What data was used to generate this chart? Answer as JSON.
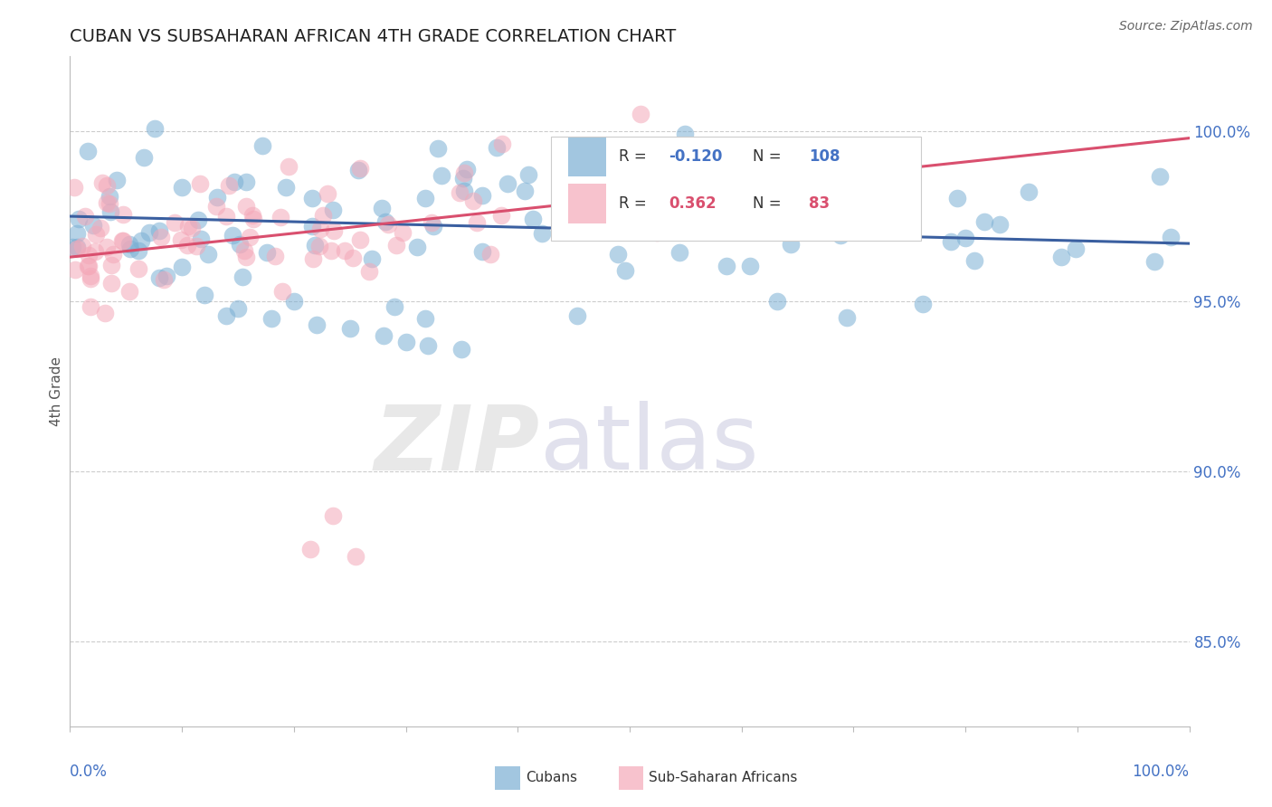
{
  "title": "CUBAN VS SUBSAHARAN AFRICAN 4TH GRADE CORRELATION CHART",
  "source_text": "Source: ZipAtlas.com",
  "ylabel": "4th Grade",
  "right_yticks": [
    "85.0%",
    "90.0%",
    "95.0%",
    "100.0%"
  ],
  "right_ytick_vals": [
    0.85,
    0.9,
    0.95,
    1.0
  ],
  "xlim": [
    0.0,
    1.0
  ],
  "ylim": [
    0.825,
    1.022
  ],
  "legend_r_blue": "-0.120",
  "legend_n_blue": "108",
  "legend_r_pink": "0.362",
  "legend_n_pink": "83",
  "blue_color": "#7BAFD4",
  "pink_color": "#F4A8B8",
  "trendline_blue": "#3A5FA0",
  "trendline_pink": "#D94F6E",
  "background_color": "#FFFFFF",
  "blue_seed": 42,
  "pink_seed": 77
}
